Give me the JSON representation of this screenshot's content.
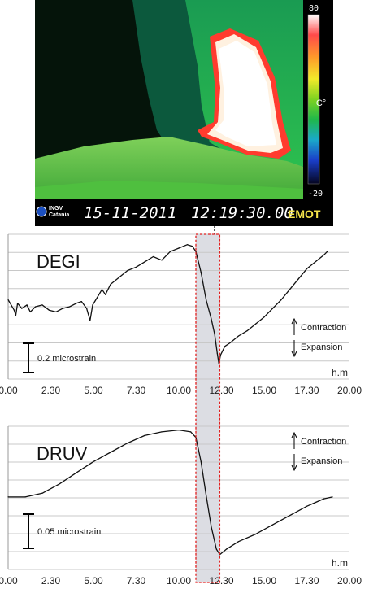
{
  "thermal_image": {
    "date": "15-11-2011",
    "time": "12:19:30.00",
    "institute_line1": "INGV",
    "institute_line2": "Catania",
    "camera_label": "EMOT",
    "colorbar_max": "80",
    "colorbar_min": "-20",
    "colorbar_unit": "C°",
    "colors": {
      "bg": "#000000",
      "text": "#ffffff",
      "label": "#f5e34a"
    }
  },
  "chart_data": [
    {
      "type": "line",
      "title": "DEGI",
      "xlabel": "h.m",
      "x_tick_labels": [
        "0.00",
        "2.30",
        "5.00",
        "7.30",
        "10.00",
        "12.30",
        "15.00",
        "17.30",
        "20.00"
      ],
      "xlim": [
        0,
        20
      ],
      "ylim": [
        0,
        8.4
      ],
      "grid": true,
      "scale_bar_label": "0.2 microstrain",
      "contraction_label": "Contraction",
      "expansion_label": "Expansion",
      "highlight_x": [
        11.0,
        12.4
      ],
      "series": [
        {
          "values": [
            [
              0.0,
              4.6
            ],
            [
              0.35,
              4.0
            ],
            [
              0.45,
              3.7
            ],
            [
              0.55,
              4.4
            ],
            [
              0.8,
              4.1
            ],
            [
              1.1,
              4.3
            ],
            [
              1.3,
              3.9
            ],
            [
              1.6,
              4.2
            ],
            [
              2.0,
              4.3
            ],
            [
              2.4,
              4.0
            ],
            [
              2.8,
              3.9
            ],
            [
              3.2,
              4.1
            ],
            [
              3.6,
              4.2
            ],
            [
              4.0,
              4.4
            ],
            [
              4.3,
              4.5
            ],
            [
              4.6,
              4.1
            ],
            [
              4.8,
              3.4
            ],
            [
              4.95,
              4.3
            ],
            [
              5.2,
              4.7
            ],
            [
              5.5,
              5.2
            ],
            [
              5.7,
              4.9
            ],
            [
              6.0,
              5.5
            ],
            [
              6.5,
              5.9
            ],
            [
              7.0,
              6.3
            ],
            [
              7.5,
              6.5
            ],
            [
              8.0,
              6.8
            ],
            [
              8.5,
              7.1
            ],
            [
              9.0,
              6.9
            ],
            [
              9.5,
              7.4
            ],
            [
              10.0,
              7.6
            ],
            [
              10.5,
              7.8
            ],
            [
              10.8,
              7.7
            ],
            [
              11.0,
              7.4
            ],
            [
              11.3,
              6.2
            ],
            [
              11.6,
              4.6
            ],
            [
              11.9,
              3.5
            ],
            [
              12.1,
              2.6
            ],
            [
              12.25,
              1.5
            ],
            [
              12.35,
              0.9
            ],
            [
              12.45,
              1.4
            ],
            [
              12.7,
              1.9
            ],
            [
              13.0,
              2.1
            ],
            [
              13.5,
              2.5
            ],
            [
              14.0,
              2.8
            ],
            [
              14.5,
              3.2
            ],
            [
              15.0,
              3.6
            ],
            [
              15.5,
              4.1
            ],
            [
              16.0,
              4.6
            ],
            [
              16.5,
              5.2
            ],
            [
              17.0,
              5.8
            ],
            [
              17.5,
              6.4
            ],
            [
              18.0,
              6.8
            ],
            [
              18.5,
              7.2
            ],
            [
              18.7,
              7.4
            ]
          ]
        }
      ]
    },
    {
      "type": "line",
      "title": "DRUV",
      "xlabel": "h.m",
      "x_tick_labels": [
        "0.00",
        "2.30",
        "5.00",
        "7.30",
        "10.00",
        "12.30",
        "15.00",
        "17.30",
        "20.00"
      ],
      "xlim": [
        0,
        20
      ],
      "ylim": [
        0,
        7.7
      ],
      "grid": true,
      "scale_bar_label": "0.05 microstrain",
      "contraction_label": "Contraction",
      "expansion_label": "Expansion",
      "highlight_x": [
        11.0,
        12.4
      ],
      "series": [
        {
          "values": [
            [
              0.0,
              3.9
            ],
            [
              1.0,
              3.9
            ],
            [
              2.0,
              4.1
            ],
            [
              3.0,
              4.6
            ],
            [
              4.0,
              5.2
            ],
            [
              5.0,
              5.8
            ],
            [
              6.0,
              6.3
            ],
            [
              7.0,
              6.8
            ],
            [
              8.0,
              7.2
            ],
            [
              9.0,
              7.4
            ],
            [
              10.0,
              7.5
            ],
            [
              10.7,
              7.4
            ],
            [
              11.0,
              7.1
            ],
            [
              11.3,
              5.8
            ],
            [
              11.6,
              4.0
            ],
            [
              11.9,
              2.3
            ],
            [
              12.2,
              1.1
            ],
            [
              12.4,
              0.8
            ],
            [
              12.8,
              1.1
            ],
            [
              13.5,
              1.5
            ],
            [
              14.5,
              1.9
            ],
            [
              15.5,
              2.4
            ],
            [
              16.5,
              2.9
            ],
            [
              17.5,
              3.4
            ],
            [
              18.5,
              3.8
            ],
            [
              19.0,
              3.9
            ]
          ]
        }
      ]
    }
  ]
}
